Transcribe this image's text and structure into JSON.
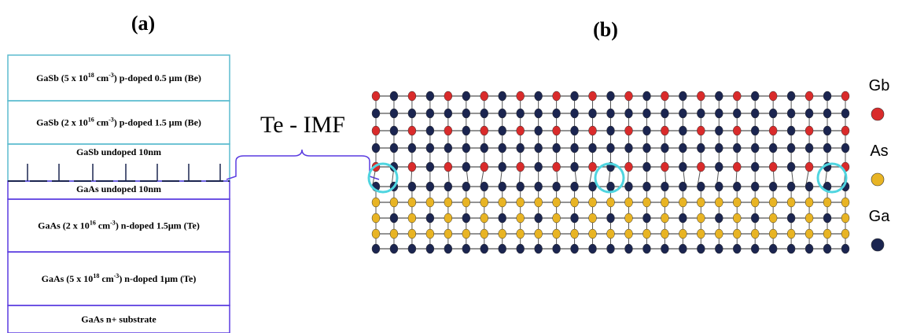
{
  "panel_a": {
    "label": "(a)",
    "layers": [
      {
        "parts": [
          "GaSb (5 x 10",
          "18",
          " cm",
          "-3",
          ") p-doped 0.5 μm (Be)"
        ]
      },
      {
        "parts": [
          "GaSb (2 x 10",
          "16",
          " cm",
          "-3",
          ") p-doped 1.5 μm (Be)"
        ]
      },
      {
        "parts": [
          "GaSb undoped  10nm"
        ]
      },
      {
        "parts": [
          "GaAs undoped  10nm"
        ]
      },
      {
        "parts": [
          "GaAs (2 x 10",
          "16",
          " cm",
          "-3",
          ") n-doped 1.5μm (Te)"
        ]
      },
      {
        "parts": [
          "GaAs (5 x 10",
          "18",
          " cm",
          "-3",
          ") n-doped 1μm (Te)"
        ]
      },
      {
        "parts": [
          "GaAs n+ substrate"
        ]
      }
    ]
  },
  "annotation": "Te - IMF",
  "panel_b": {
    "label": "(b)",
    "legend": [
      {
        "name": "Gb",
        "color": "#d92b2b"
      },
      {
        "name": "As",
        "color": "#e8b424"
      },
      {
        "name": "Ga",
        "color": "#1b2550"
      }
    ]
  }
}
